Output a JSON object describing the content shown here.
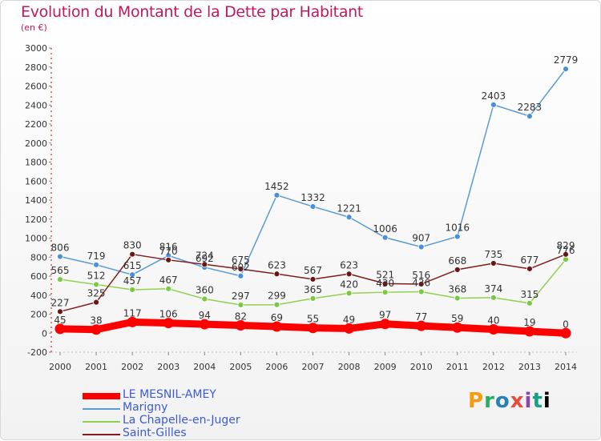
{
  "chart_data": {
    "type": "line",
    "title": "Evolution du Montant de la Dette par Habitant",
    "subtitle": "(en €)",
    "x": [
      2000,
      2001,
      2002,
      2003,
      2004,
      2005,
      2006,
      2007,
      2008,
      2009,
      2010,
      2011,
      2012,
      2013,
      2014
    ],
    "ylim": [
      -200,
      3000
    ],
    "yticks": [
      -200,
      0,
      200,
      400,
      600,
      800,
      1000,
      1200,
      1400,
      1600,
      1800,
      2000,
      2200,
      2400,
      2600,
      2800,
      3000
    ],
    "grid": false,
    "legend_position": "bottom-left",
    "series": [
      {
        "name": "LE MESNIL-AMEY",
        "color": "#ff0000",
        "values": [
          45,
          38,
          117,
          106,
          94,
          82,
          69,
          55,
          49,
          97,
          77,
          59,
          40,
          19,
          0
        ]
      },
      {
        "name": "Marigny",
        "color": "#5b9bd5",
        "values": [
          806,
          719,
          615,
          816,
          692,
          602,
          1452,
          1332,
          1221,
          1006,
          907,
          1016,
          2403,
          2283,
          2779
        ]
      },
      {
        "name": "La Chapelle-en-Juger",
        "color": "#92d050",
        "values": [
          565,
          512,
          457,
          467,
          360,
          297,
          299,
          365,
          420,
          430,
          436,
          368,
          374,
          315,
          776
        ]
      },
      {
        "name": "Saint-Gilles",
        "color": "#7f1d1d",
        "values": [
          227,
          325,
          830,
          770,
          724,
          675,
          623,
          567,
          623,
          521,
          516,
          668,
          735,
          677,
          829
        ]
      }
    ]
  },
  "logo": {
    "letters": [
      "P",
      "r",
      "o",
      "x",
      "i",
      "t",
      "i"
    ]
  }
}
